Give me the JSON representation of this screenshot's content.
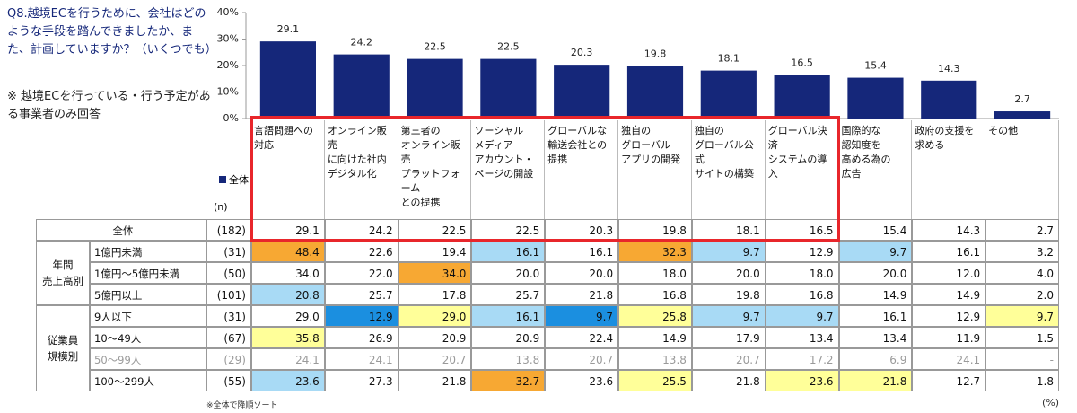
{
  "question": "Q8.越境ECを行うために、会社はどのような手段を踏んできましたか、また、計画していますか？（いくつでも）",
  "note": "※ 越境ECを行っている・行う予定がある事業者のみ回答",
  "chart_data": {
    "type": "bar",
    "categories": [
      "言語問題への\n対応",
      "オンライン販売\nに向けた社内\nデジタル化",
      "第三者の\nオンライン販売\nプラットフォーム\nとの提携",
      "ソーシャル\nメディア\nアカウント・\nページの開設",
      "グローバルな\n輸送会社との\n提携",
      "独自の\nグローバル\nアプリの開発",
      "独自の\nグローバル公式\nサイトの構築",
      "グローバル決済\nシステムの導入",
      "国際的な\n認知度を\n高める為の\n広告",
      "政府の支援を\n求める",
      "その他"
    ],
    "series": [
      {
        "name": "全体",
        "color": "#15277a",
        "values": [
          29.1,
          24.2,
          22.5,
          22.5,
          20.3,
          19.8,
          18.1,
          16.5,
          15.4,
          14.3,
          2.7
        ]
      }
    ],
    "ylim": [
      0,
      40
    ],
    "yticks": [
      {
        "value": 0,
        "label": "0%"
      },
      {
        "value": 10,
        "label": "10%"
      },
      {
        "value": 20,
        "label": "20%"
      },
      {
        "value": 30,
        "label": "30%"
      },
      {
        "value": 40,
        "label": "40%"
      }
    ]
  },
  "table": {
    "n_header": "(n)",
    "total": {
      "label": "全体",
      "n": "(182)",
      "values": [
        "29.1",
        "24.2",
        "22.5",
        "22.5",
        "20.3",
        "19.8",
        "18.1",
        "16.5",
        "15.4",
        "14.3",
        "2.7"
      ],
      "fills": [
        null,
        null,
        null,
        null,
        null,
        null,
        null,
        null,
        null,
        null,
        null
      ]
    },
    "groups": [
      {
        "label": "年間\n売上高別",
        "rows": [
          {
            "label": "1億円未満",
            "n": "(31)",
            "values": [
              "48.4",
              "22.6",
              "19.4",
              "16.1",
              "16.1",
              "32.3",
              "9.7",
              "12.9",
              "9.7",
              "16.1",
              "3.2"
            ],
            "fills": [
              "#f7a833",
              null,
              null,
              "#a8daf5",
              null,
              "#f7a833",
              "#a8daf5",
              null,
              "#a8daf5",
              null,
              null
            ]
          },
          {
            "label": "1億円～5億円未満",
            "n": "(50)",
            "values": [
              "34.0",
              "22.0",
              "34.0",
              "20.0",
              "20.0",
              "18.0",
              "20.0",
              "18.0",
              "20.0",
              "12.0",
              "4.0"
            ],
            "fills": [
              null,
              null,
              "#f7a833",
              null,
              null,
              null,
              null,
              null,
              null,
              null,
              null
            ]
          },
          {
            "label": "5億円以上",
            "n": "(101)",
            "values": [
              "20.8",
              "25.7",
              "17.8",
              "25.7",
              "21.8",
              "16.8",
              "19.8",
              "16.8",
              "14.9",
              "14.9",
              "2.0"
            ],
            "fills": [
              "#a8daf5",
              null,
              null,
              null,
              null,
              null,
              null,
              null,
              null,
              null,
              null
            ]
          }
        ]
      },
      {
        "label": "従業員\n規模別",
        "rows": [
          {
            "label": "9人以下",
            "n": "(31)",
            "values": [
              "29.0",
              "12.9",
              "29.0",
              "16.1",
              "9.7",
              "25.8",
              "9.7",
              "9.7",
              "16.1",
              "12.9",
              "9.7"
            ],
            "fills": [
              null,
              "#1b8fe0",
              "#ffff99",
              "#a8daf5",
              "#1b8fe0",
              "#ffff99",
              "#a8daf5",
              "#a8daf5",
              null,
              null,
              "#ffff99"
            ]
          },
          {
            "label": "10～49人",
            "n": "(67)",
            "values": [
              "35.8",
              "26.9",
              "20.9",
              "20.9",
              "22.4",
              "14.9",
              "17.9",
              "13.4",
              "13.4",
              "11.9",
              "1.5"
            ],
            "fills": [
              "#ffff99",
              null,
              null,
              null,
              null,
              null,
              null,
              null,
              null,
              null,
              null
            ]
          },
          {
            "label": "50～99人",
            "n": "(29)",
            "muted": true,
            "values": [
              "24.1",
              "24.1",
              "20.7",
              "13.8",
              "20.7",
              "13.8",
              "20.7",
              "17.2",
              "6.9",
              "24.1",
              "-"
            ],
            "fills": [
              null,
              null,
              null,
              null,
              null,
              null,
              null,
              null,
              null,
              null,
              null
            ]
          },
          {
            "label": "100～299人",
            "n": "(55)",
            "values": [
              "23.6",
              "27.3",
              "21.8",
              "32.7",
              "23.6",
              "25.5",
              "21.8",
              "23.6",
              "21.8",
              "12.7",
              "1.8"
            ],
            "fills": [
              "#a8daf5",
              null,
              null,
              "#f7a833",
              null,
              "#ffff99",
              null,
              "#ffff99",
              "#ffff99",
              null,
              null
            ]
          }
        ]
      }
    ]
  },
  "footnote": "※全体で降順ソート",
  "unit": "(%)"
}
